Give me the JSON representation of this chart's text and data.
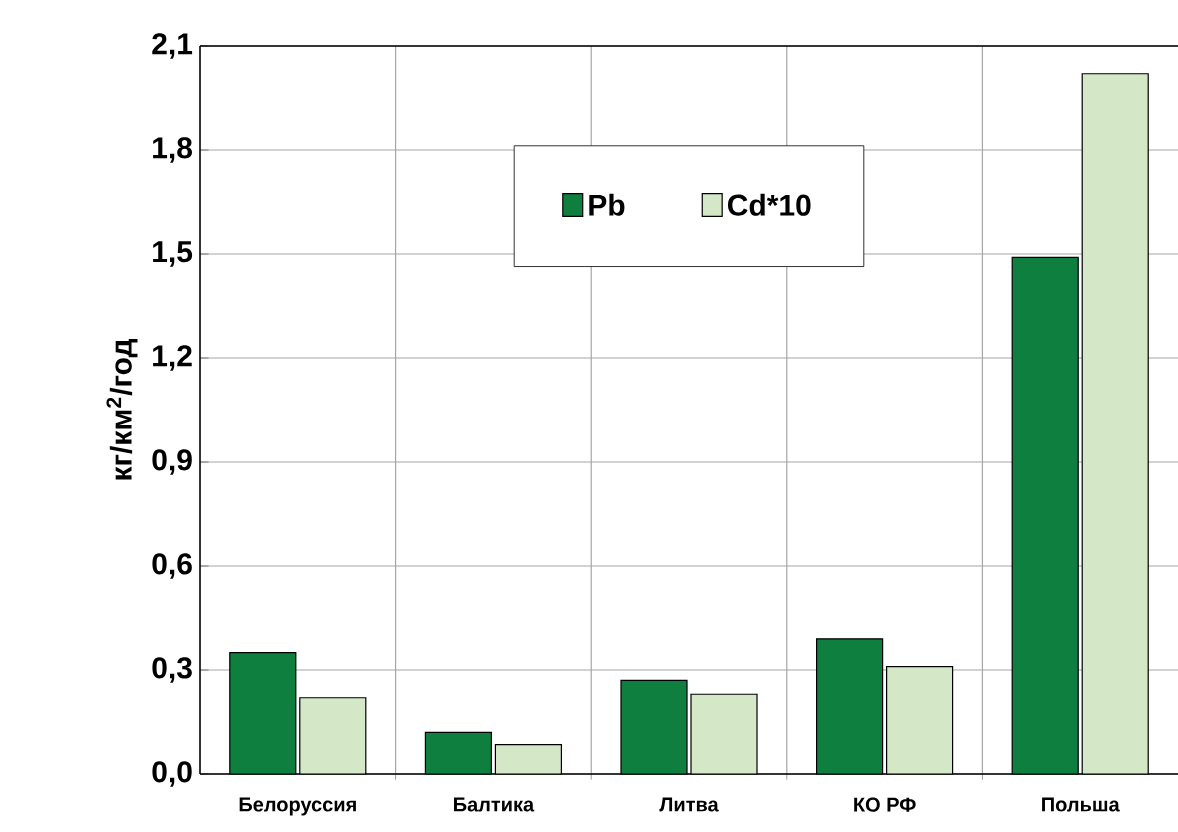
{
  "chart_data": {
    "type": "bar",
    "ylabel": "кг/км$^{2}$/год",
    "categories": [
      "Белоруссия",
      "Балтика",
      "Литва",
      "КО РФ",
      "Польша"
    ],
    "series": [
      {
        "name": "Pb",
        "color": "#0f7f3f",
        "values": [
          0.35,
          0.12,
          0.27,
          0.39,
          1.49
        ]
      },
      {
        "name": "Cd*10",
        "color": "#d4e8c8",
        "values": [
          0.22,
          0.085,
          0.23,
          0.31,
          2.02
        ]
      }
    ],
    "ylim": [
      0,
      2.1
    ],
    "yticks": [
      {
        "value": 0,
        "label": "0,0"
      },
      {
        "value": 0.3,
        "label": "0,3"
      },
      {
        "value": 0.6,
        "label": "0,6"
      },
      {
        "value": 0.9,
        "label": "0,9"
      },
      {
        "value": 1.2,
        "label": "1,2"
      },
      {
        "value": 1.5,
        "label": "1,5"
      },
      {
        "value": 1.8,
        "label": "1,8"
      },
      {
        "value": 2.1,
        "label": "2,1"
      }
    ],
    "grid": true,
    "legend": "top"
  }
}
